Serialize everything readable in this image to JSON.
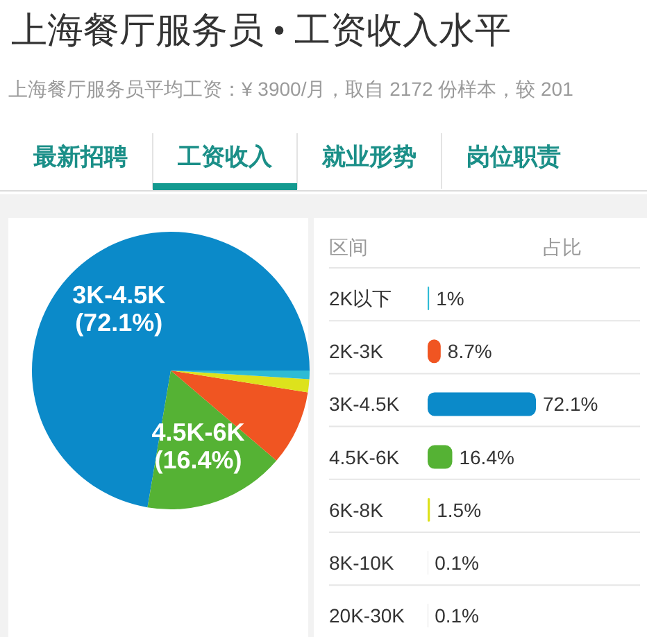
{
  "chart_data": [
    {
      "type": "pie",
      "title": "上海餐厅服务员 • 工资收入水平",
      "subtitle": "上海餐厅服务员平均工资：¥ 3900/月，取自 2172 份样本，较 201",
      "annotations": [
        "最新招聘",
        "工资收入",
        "就业形势",
        "岗位职责"
      ],
      "categories": [
        "3K-4.5K",
        "4.5K-6K",
        null,
        null,
        null
      ],
      "values": [
        72.1,
        16.4,
        8.7,
        1.5,
        1
      ],
      "colors": [
        "#0b8ac9",
        "#55b234",
        "#f05522",
        "#dde21c",
        "#2ebbd5"
      ],
      "value_labels": [
        "(72.1%)",
        "(16.4%)",
        null,
        null,
        null
      ]
    },
    {
      "type": "bar",
      "orientation": "horizontal",
      "ylabel": "区间",
      "xlabel": "占比",
      "categories": [
        "2K以下",
        "2K-3K",
        "3K-4.5K",
        "4.5K-6K",
        "6K-8K",
        "8K-10K",
        "20K-30K"
      ],
      "values": [
        1,
        8.7,
        72.1,
        16.4,
        1.5,
        0.1,
        0.1
      ],
      "colors": [
        "#2ebbd5",
        "#f05522",
        "#0b8ac9",
        "#55b234",
        "#dde21c",
        "#9a9a9a",
        "#6f6f6f"
      ],
      "value_labels": [
        "1%",
        "8.7%",
        "72.1%",
        "16.4%",
        "1.5%",
        "0.1%",
        "0.1%"
      ]
    }
  ]
}
